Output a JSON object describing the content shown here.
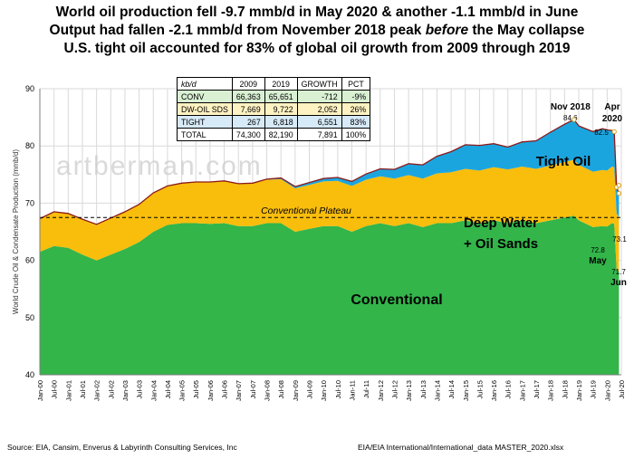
{
  "titles": {
    "line1": "World oil production fell -9.7 mmb/d in May 2020 & another -1.1 mmb/d in June",
    "line2_a": "Output had fallen -2.1 mmb/d from November 2018 peak ",
    "line2_b": "before",
    "line2_c": " the May collapse",
    "line3": "U.S. tight oil accounted for 83% of global oil growth from 2009 through 2019"
  },
  "source_left": "Source:  EIA, Cansim, Enverus & Labyrinth Consulting Services, Inc",
  "source_right": "EIA/EIA International/International_data  MASTER_2020.xlsx",
  "watermark": "artberman.com",
  "colors": {
    "conventional": "#33b54a",
    "deepwater": "#f9bd0c",
    "tight": "#1ba5df",
    "total_line": "#8b1a1a",
    "plateau": "#000000",
    "grid": "#d9d9d9"
  },
  "table": {
    "headers": [
      "kb/d",
      "2009",
      "2019",
      "GROWTH",
      "PCT"
    ],
    "rows": [
      [
        "CONV",
        "66,363",
        "65,651",
        "-712",
        "-9%"
      ],
      [
        "DW-OIL SDS",
        "7,669",
        "9,722",
        "2,052",
        "26%"
      ],
      [
        "TIGHT",
        "267",
        "6,818",
        "6,551",
        "83%"
      ],
      [
        "TOTAL",
        "74,300",
        "82,190",
        "7,891",
        "100%"
      ]
    ]
  },
  "chart_data": {
    "type": "area",
    "ylabel": "World Crude Oil & Condensate Production  (mmb/d)",
    "ylim": [
      40,
      90
    ],
    "yticks": [
      40,
      50,
      60,
      70,
      80,
      90
    ],
    "xlim": [
      "2000-01",
      "2020-07"
    ],
    "xticks": [
      "Jan-00",
      "Jul-00",
      "Jan-01",
      "Jul-01",
      "Jan-02",
      "Jul-02",
      "Jan-03",
      "Jul-03",
      "Jan-04",
      "Jul-04",
      "Jan-05",
      "Jul-05",
      "Jan-06",
      "Jul-06",
      "Jan-07",
      "Jul-07",
      "Jan-08",
      "Jul-08",
      "Jan-09",
      "Jul-09",
      "Jan-10",
      "Jul-10",
      "Jan-11",
      "Jul-11",
      "Jan-12",
      "Jul-12",
      "Jan-13",
      "Jul-13",
      "Jan-14",
      "Jul-14",
      "Jan-15",
      "Jul-15",
      "Jan-16",
      "Jul-16",
      "Jan-17",
      "Jul-17",
      "Jan-18",
      "Jul-18",
      "Jan-19",
      "Jul-19",
      "Jan-20",
      "Jul-20"
    ],
    "grid": true,
    "series": [
      {
        "name": "Conventional",
        "dates": [
          "2000-01",
          "2000-07",
          "2001-01",
          "2001-07",
          "2002-01",
          "2002-07",
          "2003-01",
          "2003-07",
          "2004-01",
          "2004-07",
          "2005-01",
          "2005-07",
          "2006-01",
          "2006-07",
          "2007-01",
          "2007-07",
          "2008-01",
          "2008-07",
          "2009-01",
          "2009-07",
          "2010-01",
          "2010-07",
          "2011-01",
          "2011-07",
          "2012-01",
          "2012-07",
          "2013-01",
          "2013-07",
          "2014-01",
          "2014-07",
          "2015-01",
          "2015-07",
          "2016-01",
          "2016-07",
          "2017-01",
          "2017-07",
          "2018-01",
          "2018-07",
          "2018-11",
          "2019-01",
          "2019-07",
          "2019-11",
          "2020-01",
          "2020-03",
          "2020-04",
          "2020-05",
          "2020-06"
        ],
        "values": [
          61.5,
          62.5,
          62.2,
          61.0,
          60.0,
          61.0,
          62.0,
          63.2,
          65.0,
          66.2,
          66.5,
          66.5,
          66.4,
          66.5,
          66.0,
          66.0,
          66.5,
          66.5,
          65.0,
          65.5,
          66.0,
          66.0,
          65.0,
          66.0,
          66.5,
          66.0,
          66.5,
          65.8,
          66.5,
          66.5,
          67.0,
          66.5,
          67.0,
          66.5,
          67.0,
          66.5,
          67.0,
          67.5,
          67.8,
          67.0,
          65.8,
          66.0,
          65.9,
          66.5,
          66.4,
          58.5,
          58.0
        ]
      },
      {
        "name": "Deep Water + Oil Sands",
        "dates": [
          "2000-01",
          "2000-07",
          "2001-01",
          "2001-07",
          "2002-01",
          "2002-07",
          "2003-01",
          "2003-07",
          "2004-01",
          "2004-07",
          "2005-01",
          "2005-07",
          "2006-01",
          "2006-07",
          "2007-01",
          "2007-07",
          "2008-01",
          "2008-07",
          "2009-01",
          "2009-07",
          "2010-01",
          "2010-07",
          "2011-01",
          "2011-07",
          "2012-01",
          "2012-07",
          "2013-01",
          "2013-07",
          "2014-01",
          "2014-07",
          "2015-01",
          "2015-07",
          "2016-01",
          "2016-07",
          "2017-01",
          "2017-07",
          "2018-01",
          "2018-07",
          "2018-11",
          "2019-01",
          "2019-07",
          "2019-11",
          "2020-01",
          "2020-03",
          "2020-04",
          "2020-05",
          "2020-06"
        ],
        "values": [
          5.8,
          6.0,
          6.0,
          6.2,
          6.3,
          6.4,
          6.5,
          6.6,
          6.8,
          6.8,
          7.0,
          7.2,
          7.3,
          7.4,
          7.4,
          7.5,
          7.6,
          7.7,
          7.6,
          7.7,
          7.8,
          7.9,
          8.0,
          8.1,
          8.2,
          8.3,
          8.4,
          8.5,
          8.7,
          8.9,
          9.0,
          9.2,
          9.3,
          9.4,
          9.4,
          9.5,
          9.6,
          9.7,
          9.8,
          9.7,
          9.7,
          9.8,
          9.8,
          9.9,
          9.9,
          9.7,
          9.6
        ]
      },
      {
        "name": "Tight Oil",
        "dates": [
          "2000-01",
          "2000-07",
          "2001-01",
          "2001-07",
          "2002-01",
          "2002-07",
          "2003-01",
          "2003-07",
          "2004-01",
          "2004-07",
          "2005-01",
          "2005-07",
          "2006-01",
          "2006-07",
          "2007-01",
          "2007-07",
          "2008-01",
          "2008-07",
          "2009-01",
          "2009-07",
          "2010-01",
          "2010-07",
          "2011-01",
          "2011-07",
          "2012-01",
          "2012-07",
          "2013-01",
          "2013-07",
          "2014-01",
          "2014-07",
          "2015-01",
          "2015-07",
          "2016-01",
          "2016-07",
          "2017-01",
          "2017-07",
          "2018-01",
          "2018-07",
          "2018-11",
          "2019-01",
          "2019-07",
          "2019-11",
          "2020-01",
          "2020-03",
          "2020-04",
          "2020-05",
          "2020-06"
        ],
        "values": [
          0,
          0,
          0,
          0,
          0,
          0,
          0,
          0,
          0,
          0,
          0,
          0,
          0,
          0,
          0,
          0,
          0.1,
          0.2,
          0.3,
          0.4,
          0.5,
          0.6,
          0.8,
          1.0,
          1.3,
          1.6,
          2.0,
          2.4,
          3.0,
          3.6,
          4.2,
          4.4,
          4.1,
          3.9,
          4.3,
          4.9,
          5.8,
          6.6,
          7.0,
          6.8,
          7.0,
          7.2,
          7.1,
          6.3,
          6.1,
          4.6,
          4.1
        ]
      }
    ],
    "annotations": [
      {
        "label": "Nov 2018",
        "value": "84.6",
        "date": "2018-11",
        "y": 84.6
      },
      {
        "label": "Apr 2020",
        "value": "82.5",
        "date": "2020-04",
        "y": 82.5
      },
      {
        "label": "May",
        "value": "72.8",
        "date": "2020-05",
        "y": 72.8
      },
      {
        "label": "",
        "value": "73.1",
        "date": "2020-06",
        "y": 73.1
      },
      {
        "label": "Jun",
        "value": "71.7",
        "date": "2020-06",
        "y": 71.7
      }
    ],
    "area_labels": {
      "conventional": "Conventional",
      "deepwater_1": "Deep Water",
      "deepwater_2": "+ Oil Sands",
      "tight": "Tight Oil",
      "plateau": "Conventional  Plateau"
    },
    "plateau_y": 67.5
  }
}
